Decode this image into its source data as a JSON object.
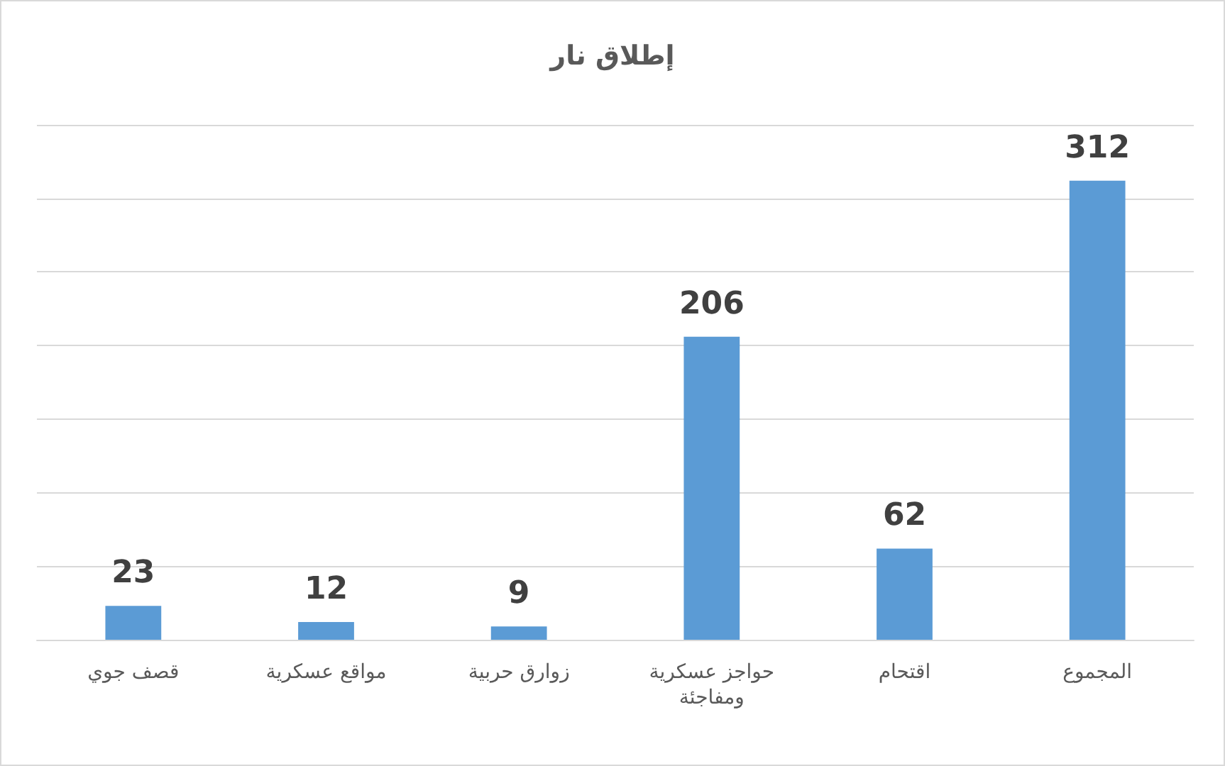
{
  "chart_data": {
    "type": "bar",
    "title": "إطلاق نار",
    "categories": [
      "قصف جوي",
      "مواقع عسكرية",
      "زوارق حربية",
      "حواجز عسكرية ومفاجئة",
      "اقتحام",
      "المجموع"
    ],
    "values": [
      23,
      12,
      9,
      206,
      62,
      312
    ],
    "color": "#5b9bd5",
    "ylim": [
      0,
      350
    ],
    "yticks": [
      {
        "value": 0,
        "label": null
      },
      {
        "value": 50,
        "label": null
      },
      {
        "value": 100,
        "label": null
      },
      {
        "value": 150,
        "label": null
      },
      {
        "value": 200,
        "label": null
      },
      {
        "value": 250,
        "label": null
      },
      {
        "value": 300,
        "label": null
      },
      {
        "value": 350,
        "label": null
      }
    ],
    "grid": "y",
    "tick_labels": "x",
    "data_labels": true
  }
}
